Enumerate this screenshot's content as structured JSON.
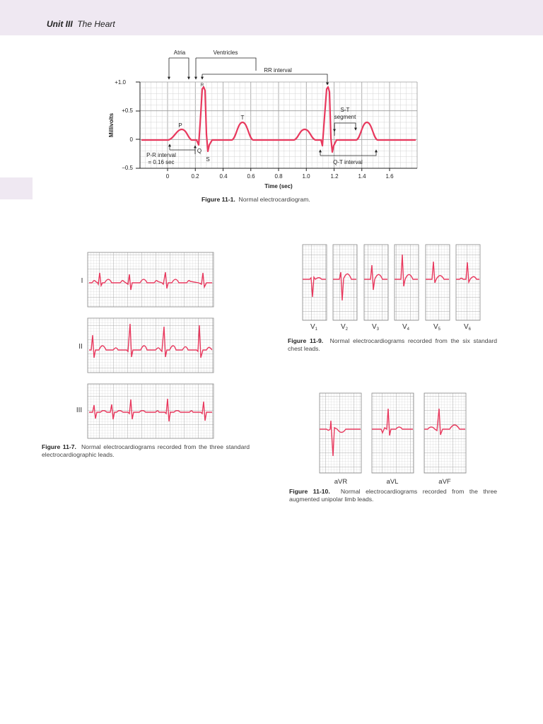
{
  "header": {
    "unit": "Unit III",
    "title": "The Heart"
  },
  "figure_11_1": {
    "caption_label": "Figure 11-1.",
    "caption_text": "Normal electrocardiogram.",
    "ylabel": "Millivolts",
    "xlabel": "Time (sec)",
    "yticks": [
      "+1.0",
      "+0.5",
      "0",
      "−0.5"
    ],
    "xticks": [
      "0",
      "0.2",
      "0.4",
      "0.6",
      "0.8",
      "1.0",
      "1.2",
      "1.4",
      "1.6"
    ],
    "labels": {
      "atria": "Atria",
      "ventricles": "Ventricles",
      "rr": "RR interval",
      "st1": "S-T",
      "st2": "segment",
      "pr1": "P-R interval",
      "pr2": "= 0.16 sec",
      "qt": "Q-T interval",
      "p": "P",
      "q": "Q",
      "r": "R",
      "s": "S",
      "t": "T"
    }
  },
  "figure_11_7": {
    "caption_label": "Figure 11-7.",
    "caption_text": "Normal electrocardiograms recorded from the three standard electrocardiographic leads.",
    "leads": [
      "I",
      "II",
      "III"
    ]
  },
  "figure_11_9": {
    "caption_label": "Figure 11-9.",
    "caption_text": "Normal electrocardiograms recorded from the six standard chest leads.",
    "leads": [
      {
        "base": "V",
        "sub": "1"
      },
      {
        "base": "V",
        "sub": "2"
      },
      {
        "base": "V",
        "sub": "3"
      },
      {
        "base": "V",
        "sub": "4"
      },
      {
        "base": "V",
        "sub": "5"
      },
      {
        "base": "V",
        "sub": "6"
      }
    ]
  },
  "figure_11_10": {
    "caption_label": "Figure 11-10.",
    "caption_text": "Normal electrocardiograms recorded from the three augmented unipolar limb leads.",
    "leads": [
      "aVR",
      "aVL",
      "aVF"
    ]
  },
  "colors": {
    "trace": "#e8395e",
    "grid": "#a8a8a8",
    "grid_minor": "#cfcfcf",
    "band": "#efe8f2"
  }
}
